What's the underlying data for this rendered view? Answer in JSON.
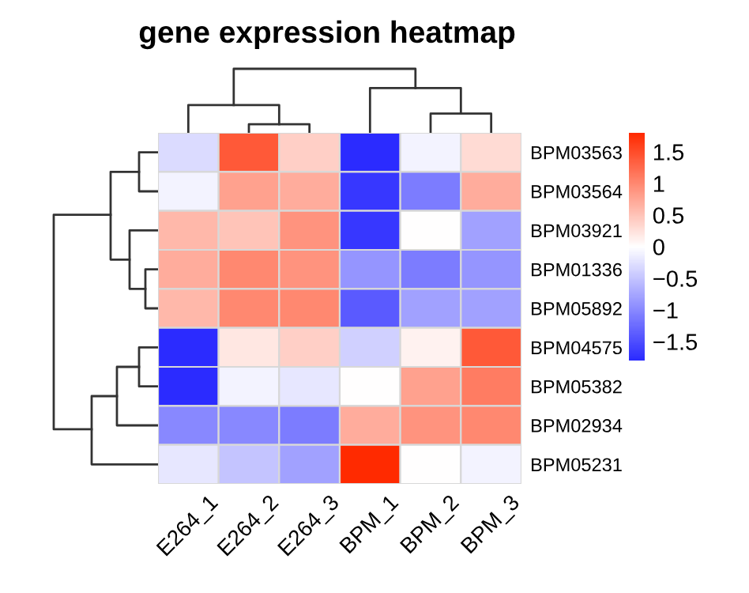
{
  "chart_data": {
    "type": "heatmap",
    "title": "gene expression heatmap",
    "categories": [
      "E264_1",
      "E264_2",
      "E264_3",
      "BPM_1",
      "BPM_2",
      "BPM_3"
    ],
    "y_categories": [
      "BPM03563",
      "BPM03564",
      "BPM03921",
      "BPM01336",
      "BPM05892",
      "BPM04575",
      "BPM05382",
      "BPM02934",
      "BPM05231"
    ],
    "cells": [
      [
        -0.3,
        1.4,
        0.4,
        -1.8,
        -0.1,
        0.3
      ],
      [
        -0.1,
        0.8,
        0.7,
        -1.7,
        -1.1,
        0.7
      ],
      [
        0.6,
        0.5,
        0.9,
        -1.7,
        0,
        -0.8
      ],
      [
        0.7,
        1.0,
        0.9,
        -0.9,
        -1.1,
        -0.9
      ],
      [
        0.6,
        1.0,
        1.0,
        -1.4,
        -0.8,
        -0.8
      ],
      [
        -1.8,
        0.2,
        0.4,
        -0.4,
        0.1,
        1.4
      ],
      [
        -1.8,
        -0.1,
        -0.2,
        0,
        0.8,
        1.1
      ],
      [
        -1.0,
        -1.0,
        -1.1,
        0.7,
        0.9,
        1.0
      ],
      [
        -0.2,
        -0.5,
        -0.8,
        1.8,
        0,
        -0.1
      ]
    ],
    "clim": [
      -1.8,
      1.8
    ],
    "cticks": [
      {
        "value": 1.5,
        "label": "1.5"
      },
      {
        "value": 1,
        "label": "1"
      },
      {
        "value": 0.5,
        "label": "0.5"
      },
      {
        "value": 0,
        "label": "0"
      },
      {
        "value": -0.5,
        "label": "−0.5"
      },
      {
        "value": -1,
        "label": "−1"
      },
      {
        "value": -1.5,
        "label": "−1.5"
      }
    ]
  }
}
